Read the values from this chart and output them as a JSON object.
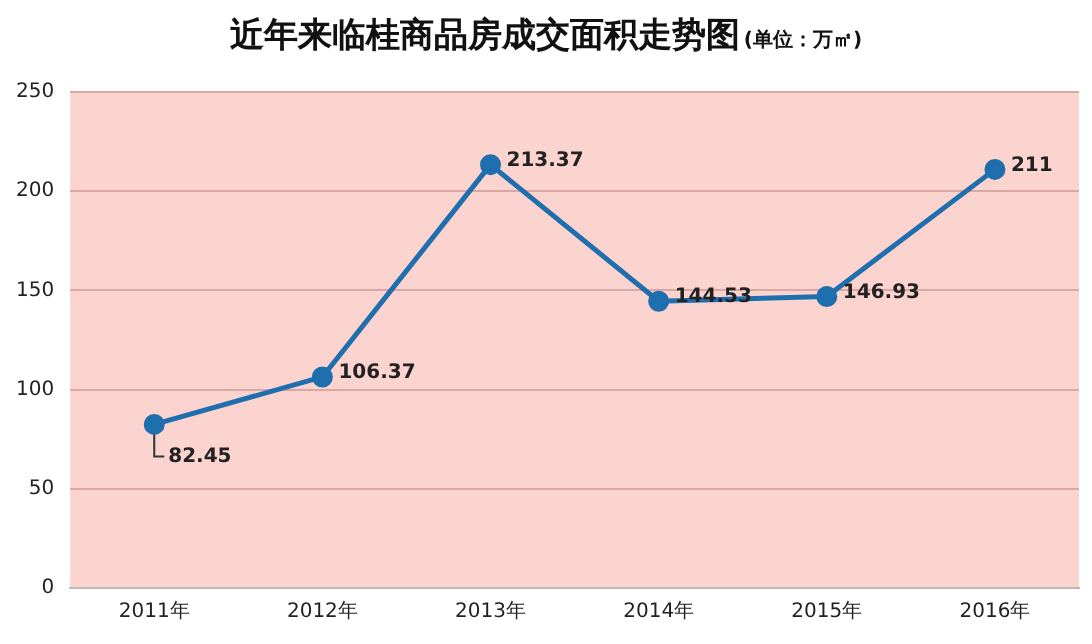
{
  "chart_data": {
    "type": "line",
    "title": "近年来临桂商品房成交面积走势图",
    "subtitle": "(单位：万㎡)",
    "categories": [
      "2011年",
      "2012年",
      "2013年",
      "2014年",
      "2015年",
      "2016年"
    ],
    "series": [
      {
        "color": "#1f6fae",
        "values": [
          82.45,
          106.37,
          213.37,
          144.53,
          146.93,
          211
        ]
      }
    ],
    "ylim": [
      0,
      250
    ],
    "yticks": [
      0,
      50,
      100,
      150,
      200,
      250
    ],
    "grid": "y",
    "legend": false,
    "marker": "circle",
    "data_labels": true
  }
}
